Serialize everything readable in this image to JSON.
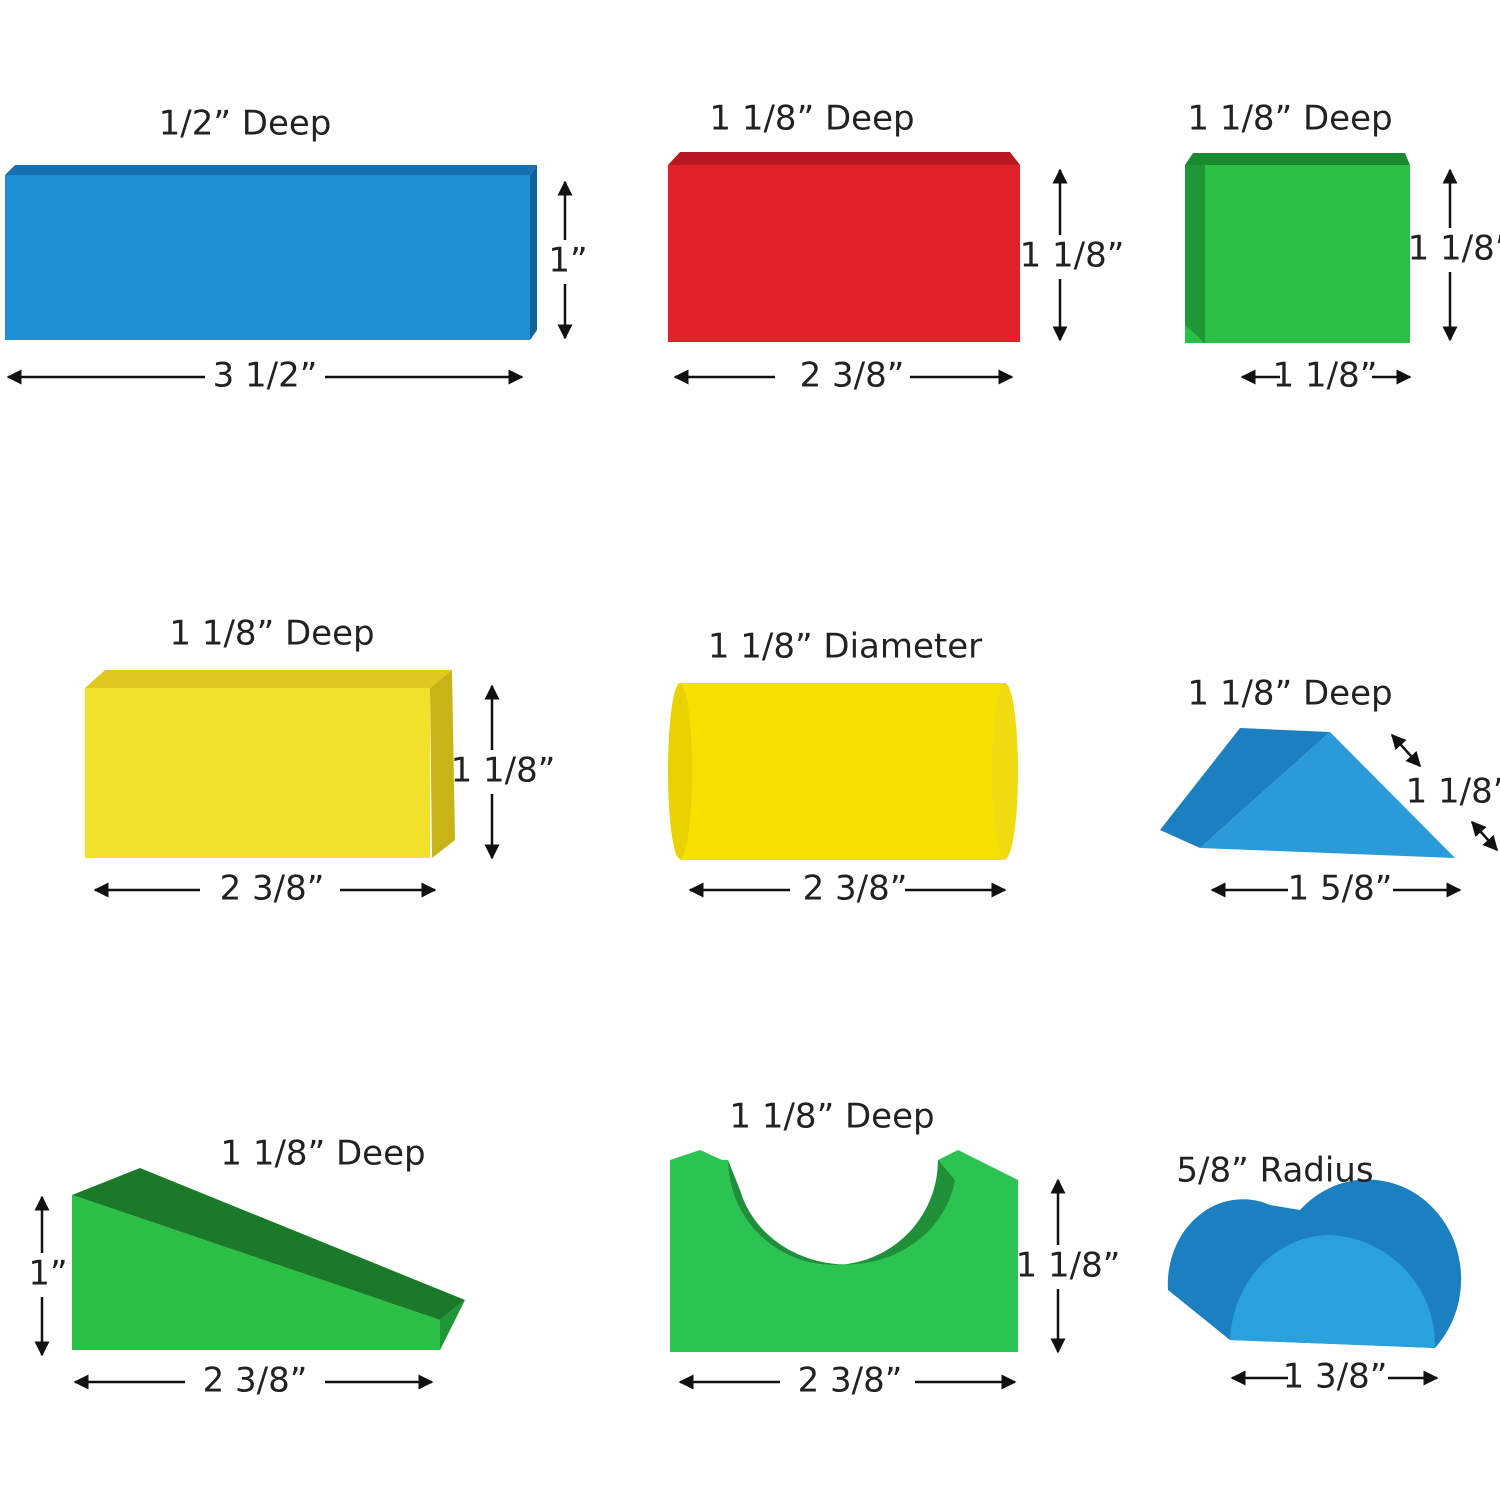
{
  "blocks": [
    {
      "depth": "1/2” Deep",
      "width": "3 1/2”",
      "height": "1”"
    },
    {
      "depth": "1 1/8” Deep",
      "width": "2 3/8”",
      "height": "1 1/8”"
    },
    {
      "depth": "1 1/8” Deep",
      "width": "1 1/8”",
      "height": "1 1/8”"
    },
    {
      "depth": "1 1/8” Deep",
      "width": "2 3/8”",
      "height": "1 1/8”"
    },
    {
      "depth": "1 1/8” Diameter",
      "width": "2 3/8”"
    },
    {
      "depth": "1 1/8” Deep",
      "width": "1 5/8”",
      "side": "1 1/8”"
    },
    {
      "depth": "1 1/8” Deep",
      "width": "2 3/8”",
      "height": "1”"
    },
    {
      "depth": "1 1/8” Deep",
      "width": "2 3/8”",
      "height": "1 1/8”"
    },
    {
      "depth": "5/8” Radius",
      "width": "1 3/8”"
    }
  ]
}
